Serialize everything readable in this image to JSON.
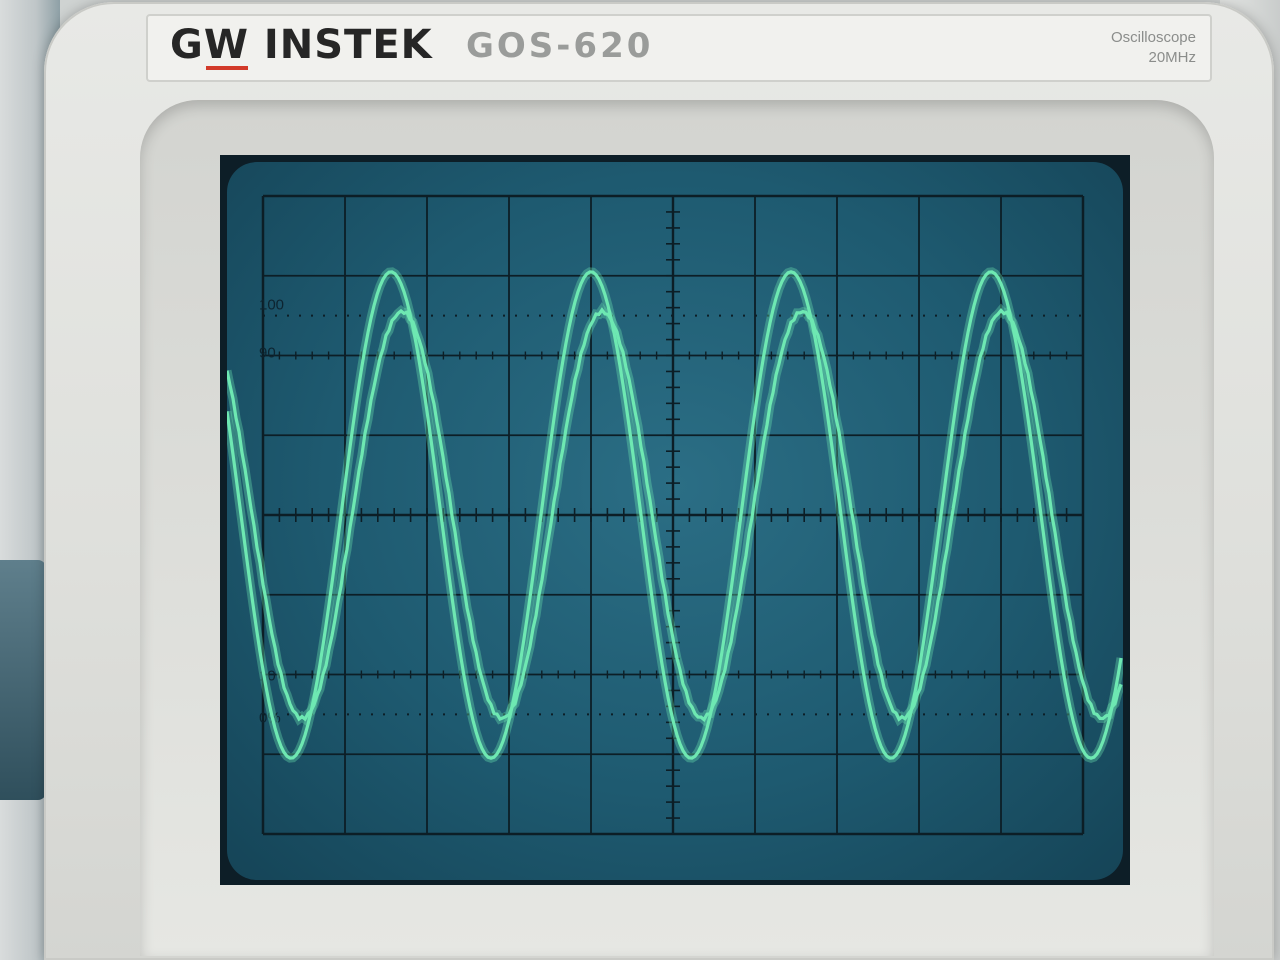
{
  "label_plate": {
    "brand": "GW INSTEK",
    "model": "GOS-620",
    "device_type": "Oscilloscope",
    "bandwidth": "20MHz",
    "brand_accent_color": "#d23a2a"
  },
  "graticule": {
    "divisions_x": 10,
    "divisions_y": 8,
    "marker_labels": [
      {
        "text": "100",
        "position": "left, above top dotted line"
      },
      {
        "text": "90",
        "position": "left, on 90% line"
      },
      {
        "text": "10",
        "position": "left, on 10% line"
      },
      {
        "text": "0%",
        "position": "left, below bottom dotted line"
      }
    ]
  },
  "screen": {
    "background_color": "#1e5a70",
    "trace_color": "#6ee8b2",
    "grid_color": "#0c1e26"
  },
  "traces": [
    {
      "name": "",
      "shape": "sine",
      "amplitude_div": 3.05,
      "cycles": 4.1,
      "phase": "starts near top-left"
    },
    {
      "name": "",
      "shape": "sine",
      "amplitude_div": 2.55,
      "cycles": 4.1,
      "phase": "slightly lagging"
    }
  ]
}
